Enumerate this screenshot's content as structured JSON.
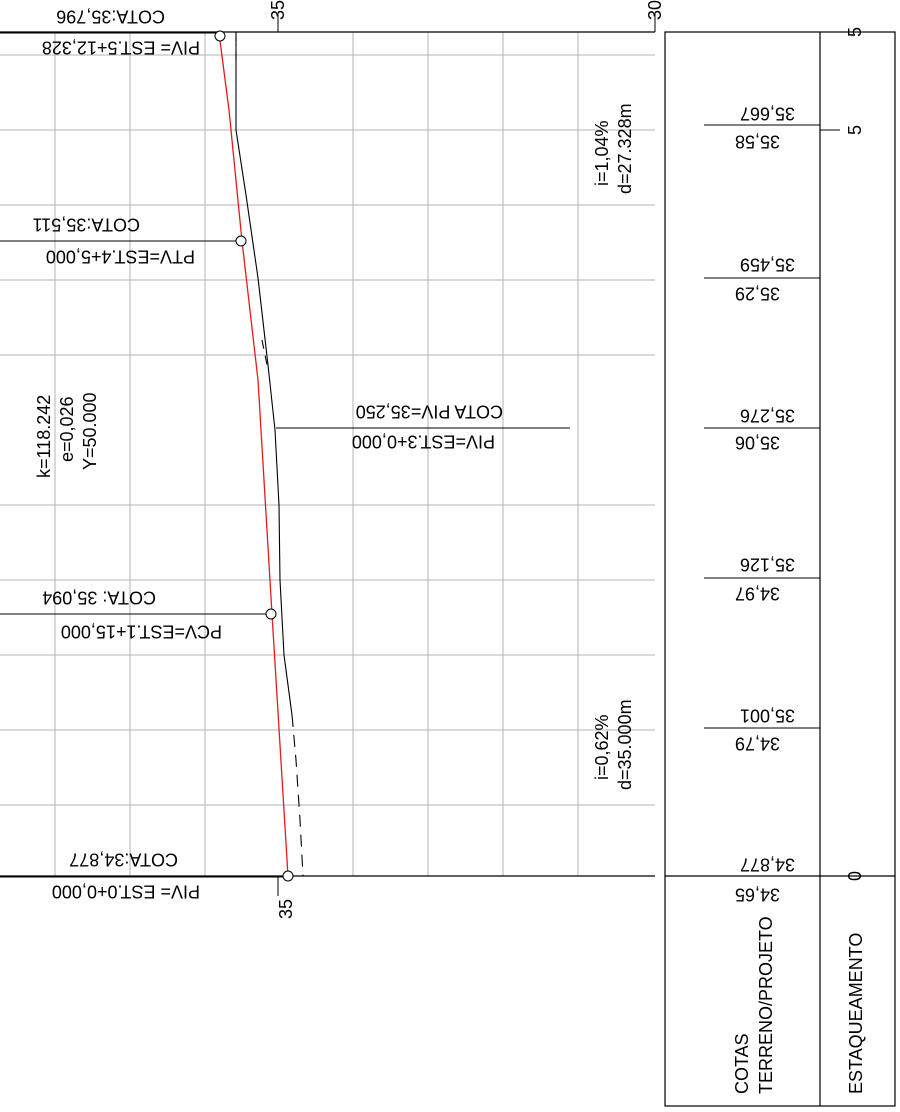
{
  "pivs": {
    "top_cota": "COTA:35,796",
    "top_piv": "PIV= EST.5+12,328",
    "ptv_cota": "COTA:35,511",
    "ptv": "PTV=EST.4+5,000",
    "mid_cota": "COTA PIV=35,250",
    "mid_piv": "PIV=EST.3+0,000",
    "pcv_cota": "COTA: 35,094",
    "pcv": "PCV=EST.1+15,000",
    "start_cota": "COTA:34,877",
    "start_piv": "PIV= EST.0+0,000"
  },
  "curve": {
    "k": "k=118.242",
    "e": "e=0,026",
    "y": "Y=50.000"
  },
  "grades": {
    "upper_i": "i=1,04%",
    "upper_d": "d=27.328m",
    "lower_i": "i=0,62%",
    "lower_d": "d=35.000m"
  },
  "axis": {
    "top_35": "35",
    "top_30": "30",
    "bottom_35": "35"
  },
  "cotas": {
    "pairs": [
      {
        "a": "35,667",
        "b": "35,58"
      },
      {
        "a": "35,459",
        "b": "35,29"
      },
      {
        "a": "35,276",
        "b": "35,06"
      },
      {
        "a": "35,126",
        "b": "34,97"
      },
      {
        "a": "35,001",
        "b": "34,79"
      },
      {
        "a": "34,877",
        "b": "34,65"
      }
    ]
  },
  "stations": {
    "top": "5",
    "mid": "5",
    "bottom": "0"
  },
  "table_labels": {
    "cotas_line1": "COTAS",
    "cotas_line2": "TERRENO/PROJETO",
    "estaqueamento": "ESTAQUEAMENTO"
  }
}
